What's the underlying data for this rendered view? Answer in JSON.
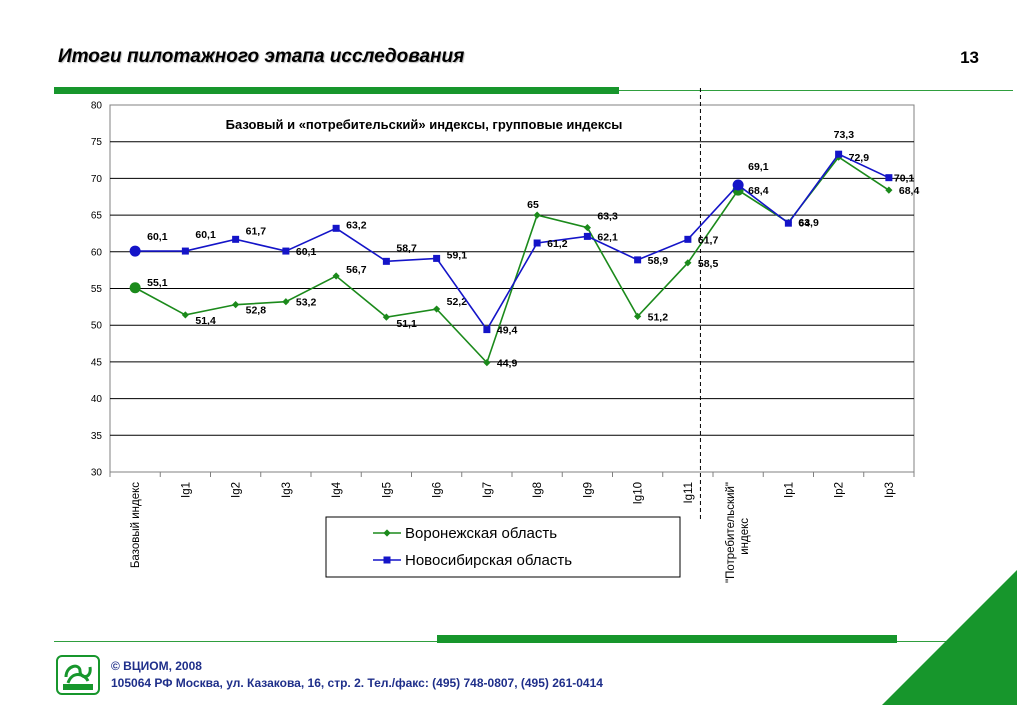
{
  "slide": {
    "title": "Итоги пилотажного этапа исследования",
    "page_number": "13"
  },
  "footer": {
    "copyright": "© ВЦИОМ, 2008",
    "address": "105064 РФ Москва, ул. Казакова, 16, стр. 2.  Тел./факс: (495) 748-0807, (495) 261-0414",
    "logo_text": "ВЦИОМ"
  },
  "colors": {
    "accent_green": "#17962c",
    "series_voronezh": "#1b8a1b",
    "series_novosibirsk": "#1414c8",
    "footer_text": "#1f2f8a"
  },
  "chart_data": {
    "type": "line",
    "title": "Базовый и «потребительский» индексы, групповые индексы",
    "categories": [
      "Базовый индекс",
      "Ig1",
      "Ig2",
      "Ig3",
      "Ig4",
      "Ig5",
      "Ig6",
      "Ig7",
      "Ig8",
      "Ig9",
      "Ig10",
      "Ig11",
      "\"Потребительский\" индекс",
      "Ip1",
      "Ip2",
      "Ip3"
    ],
    "ylim": [
      30,
      80
    ],
    "yticks": [
      30,
      35,
      40,
      45,
      50,
      55,
      60,
      65,
      70,
      75,
      80
    ],
    "grid": true,
    "legend_position": "bottom",
    "series": [
      {
        "name": "Воронежская область",
        "color": "#1b8a1b",
        "marker": "diamond",
        "values": [
          55.1,
          51.4,
          52.8,
          53.2,
          56.7,
          51.1,
          52.2,
          44.9,
          65,
          63.3,
          51.2,
          58.5,
          68.4,
          64,
          72.9,
          68.4
        ],
        "labels": [
          "55,1",
          "51,4",
          "52,8",
          "53,2",
          "56,7",
          "51,1",
          "52,2",
          "44,9",
          "65",
          "63,3",
          "51,2",
          "58,5",
          "68,4",
          "64",
          "72,9",
          "68,4"
        ]
      },
      {
        "name": "Новосибирская область",
        "color": "#1414c8",
        "marker": "square",
        "values": [
          60.1,
          60.1,
          61.7,
          60.1,
          63.2,
          58.7,
          59.1,
          49.4,
          61.2,
          62.1,
          58.9,
          61.7,
          69.1,
          63.9,
          73.3,
          70.1
        ],
        "labels": [
          "60,1",
          "60,1",
          "61,7",
          "60,1",
          "63,2",
          "58,7",
          "59,1",
          "49,4",
          "61,2",
          "62,1",
          "58,9",
          "61,7",
          "69,1",
          "63,9",
          "73,3",
          "70,1"
        ]
      }
    ]
  }
}
